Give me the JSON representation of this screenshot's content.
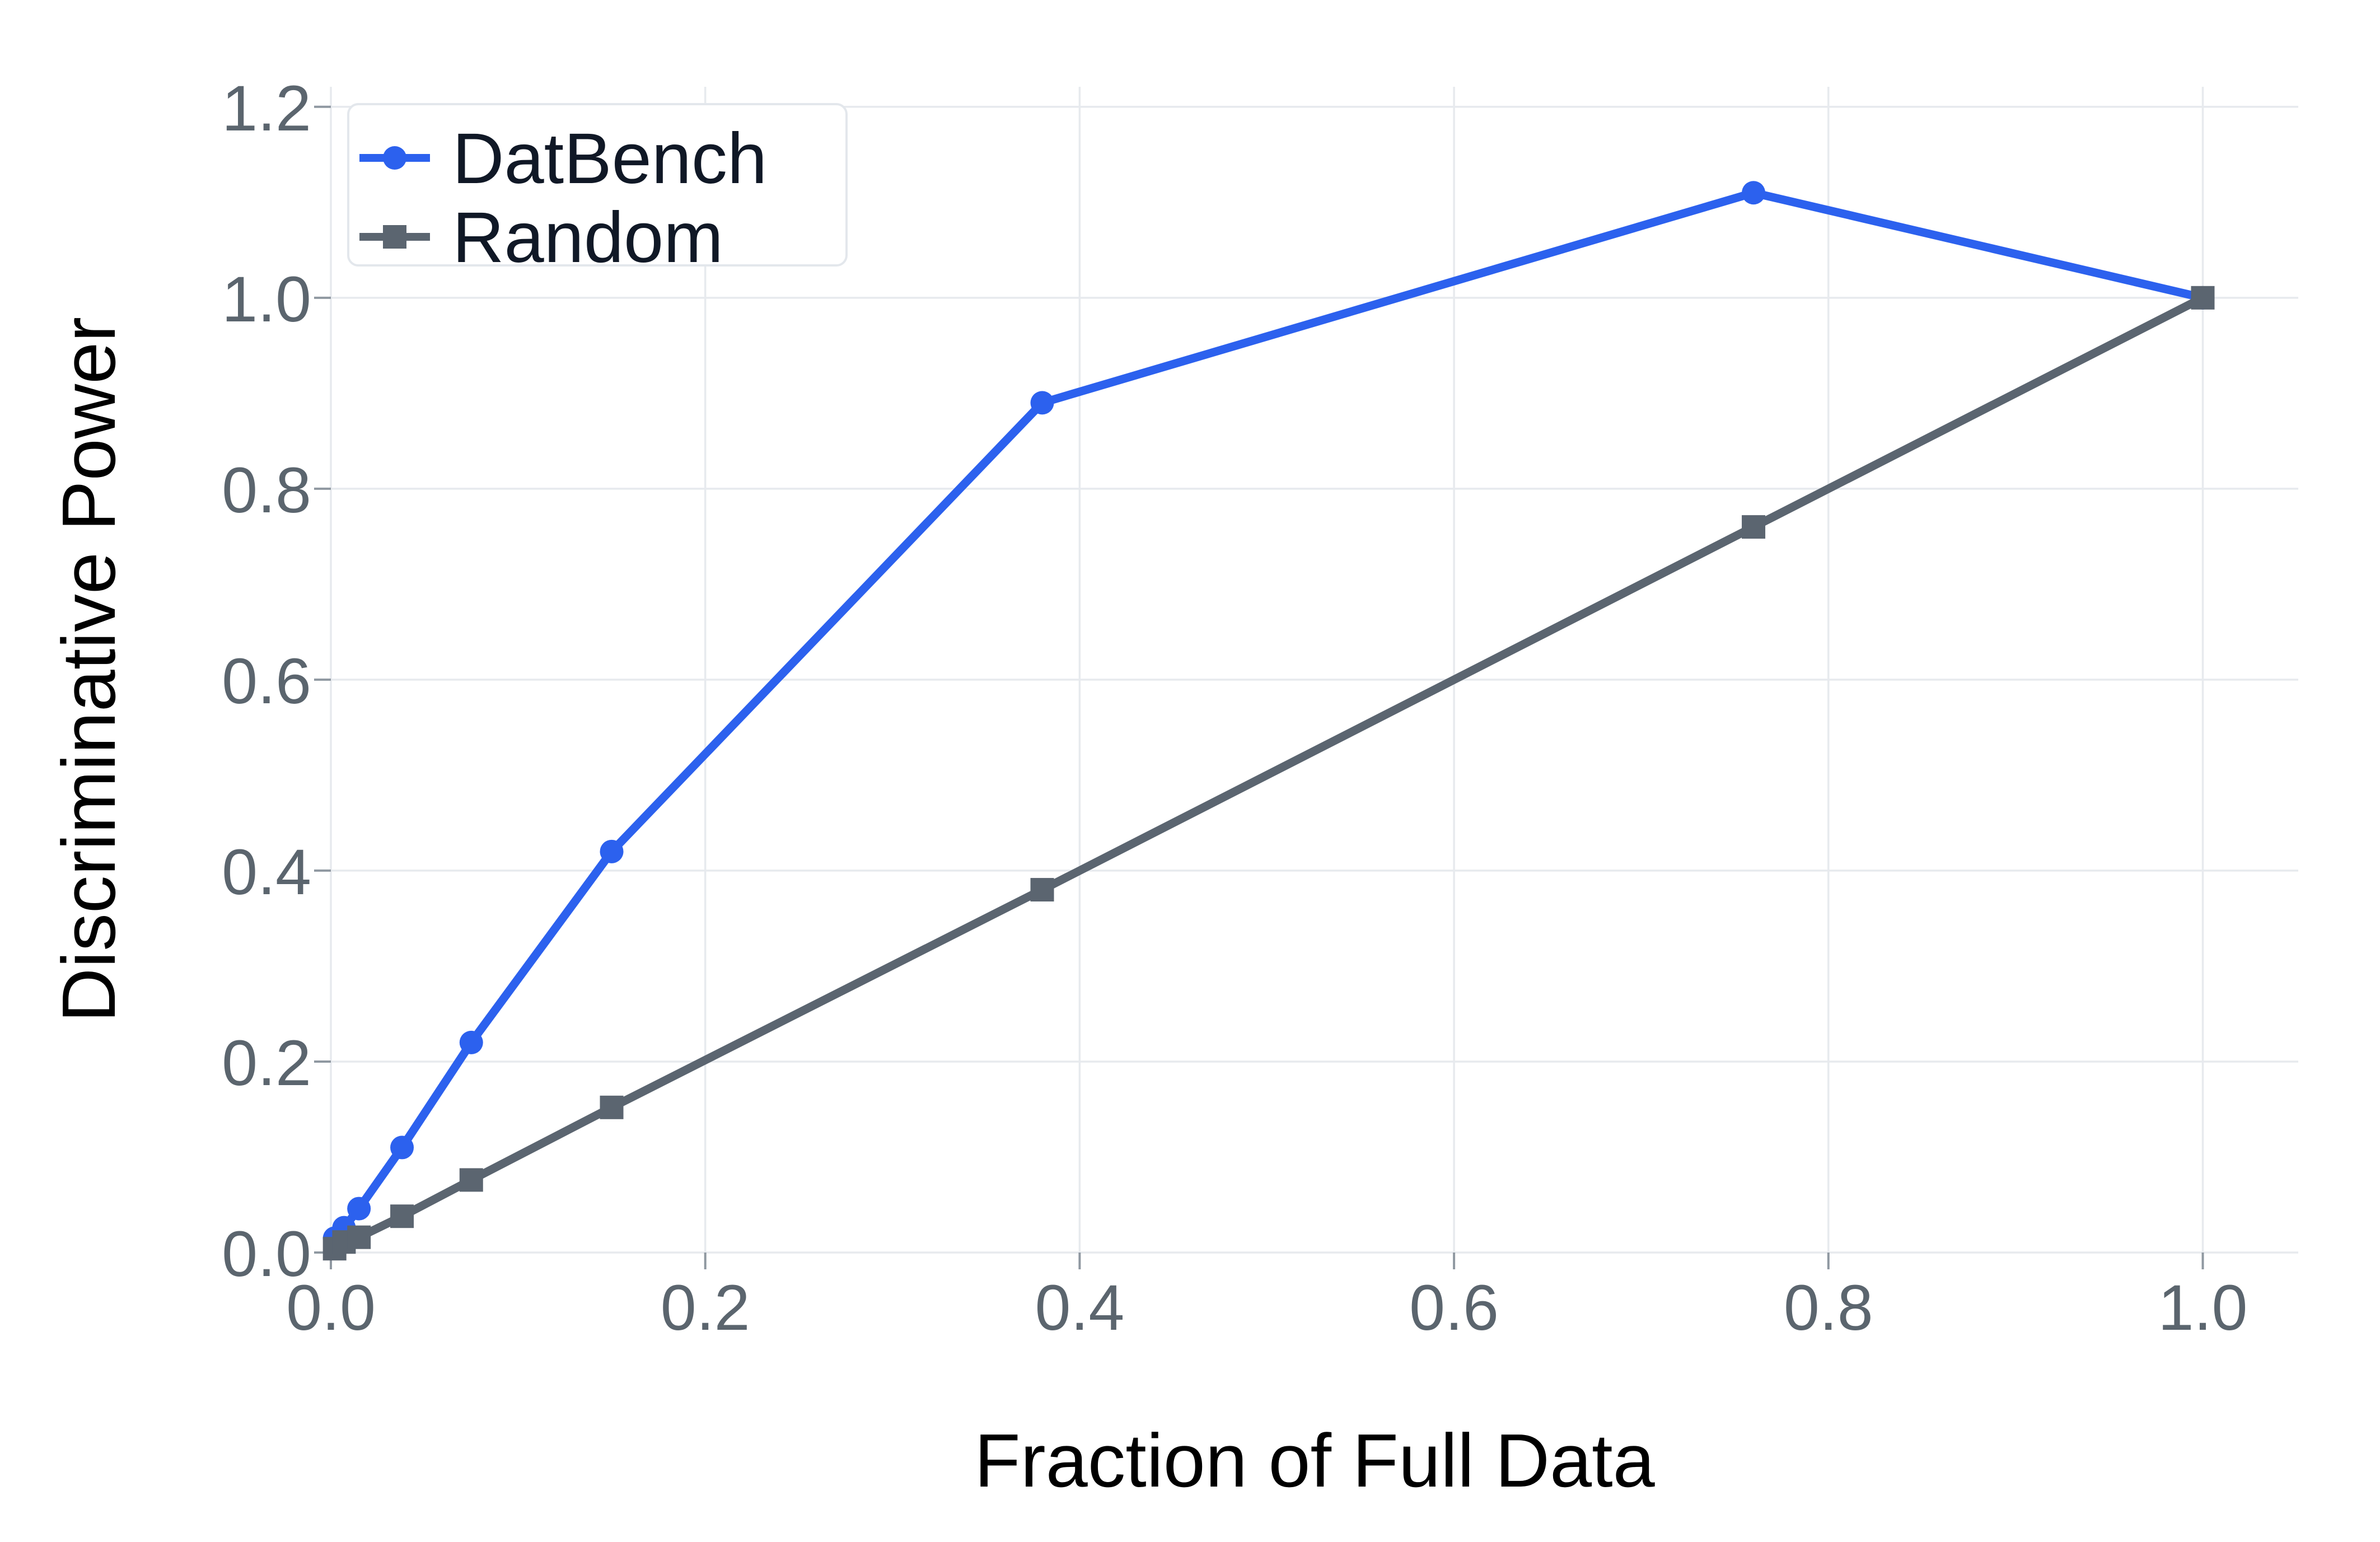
{
  "chart_data": {
    "type": "line",
    "title": "",
    "xlabel": "Fraction of Full Data",
    "ylabel": "Discriminative Power",
    "x": [
      0.002,
      0.007,
      0.015,
      0.038,
      0.075,
      0.15,
      0.38,
      0.76,
      1.0
    ],
    "series": [
      {
        "name": "DatBench",
        "marker": "circle",
        "color": "#2c61ee",
        "values": [
          0.015,
          0.026,
          0.046,
          0.11,
          0.22,
          0.42,
          0.89,
          1.11,
          1.0
        ]
      },
      {
        "name": "Random",
        "marker": "square",
        "color": "#5b6570",
        "values": [
          0.004,
          0.011,
          0.016,
          0.038,
          0.076,
          0.152,
          0.38,
          0.76,
          1.0
        ]
      }
    ],
    "xticks": {
      "values": [
        0.0,
        0.2,
        0.4,
        0.6,
        0.8,
        1.0
      ],
      "labels": [
        "0.0",
        "0.2",
        "0.4",
        "0.6",
        "0.8",
        "1.0"
      ]
    },
    "yticks": {
      "values": [
        0.0,
        0.2,
        0.4,
        0.6,
        0.8,
        1.0,
        1.2
      ],
      "labels": [
        "0.0",
        "0.2",
        "0.4",
        "0.6",
        "0.8",
        "1.0",
        "1.2"
      ]
    },
    "xlim": [
      0,
      1.051
    ],
    "ylim": [
      0,
      1.221
    ],
    "grid": true,
    "legend_position": "upper left"
  },
  "colors": {
    "background": "#ffffff",
    "gridline": "#e7eaee",
    "tick_mark": "#8f98a1",
    "tick_text": "#5b656e",
    "axis_title_text": "#5b656e",
    "legend_text": "#101826",
    "legend_border": "#e3e7ec",
    "legend_background": "#ffffff",
    "datbench_blue": "#2c61ee",
    "random_gray": "#5b6570"
  }
}
